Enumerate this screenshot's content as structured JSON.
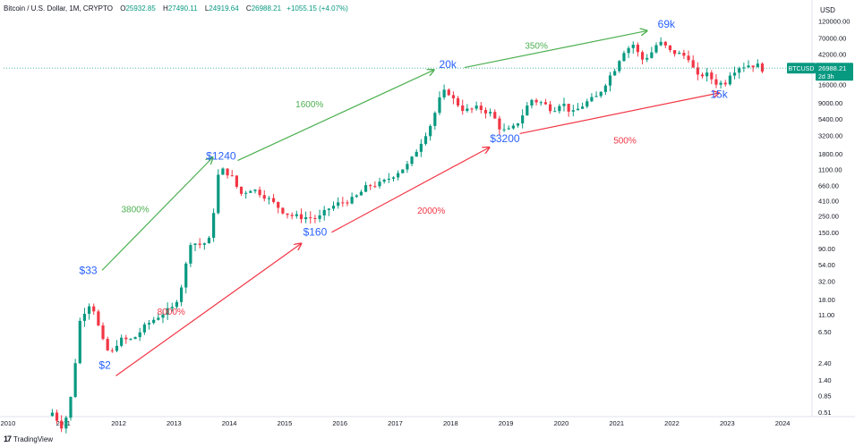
{
  "header": {
    "title": "Bitcoin / U.S. Dollar, 1M, CRYPTO",
    "open_label": "O",
    "open": "25932.85",
    "high_label": "H",
    "high": "27490.11",
    "low_label": "L",
    "low": "24919.64",
    "close_label": "C",
    "close": "26988.21",
    "change": "+1055.15 (+4.07%)"
  },
  "currency": "USD",
  "brand": {
    "logo": "17",
    "name": "TradingView"
  },
  "price_tag": {
    "symbol": "BTCUSD",
    "price": "26988.21",
    "countdown": "2d 3h",
    "value": 26988.21
  },
  "colors": {
    "up": "#089981",
    "down": "#f23645",
    "green_arrow": "#4caf50",
    "red_arrow": "#f23645",
    "blue_label": "#2962ff"
  },
  "chart_data": {
    "type": "candlestick",
    "y_scale": "log",
    "ylim": [
      0.44,
      140000
    ],
    "y_ticks": [
      {
        "v": 120000,
        "label": "120000.00"
      },
      {
        "v": 70000,
        "label": "70000.00"
      },
      {
        "v": 42000,
        "label": "42000.00"
      },
      {
        "v": 16000,
        "label": "16000.00"
      },
      {
        "v": 9000,
        "label": "9000.00"
      },
      {
        "v": 5400,
        "label": "5400.00"
      },
      {
        "v": 3200,
        "label": "3200.00"
      },
      {
        "v": 1800,
        "label": "1800.00"
      },
      {
        "v": 1100,
        "label": "1100.00"
      },
      {
        "v": 660,
        "label": "660.00"
      },
      {
        "v": 410,
        "label": "410.00"
      },
      {
        "v": 250,
        "label": "250.00"
      },
      {
        "v": 150,
        "label": "150.00"
      },
      {
        "v": 90,
        "label": "90.00"
      },
      {
        "v": 54,
        "label": "54.00"
      },
      {
        "v": 32,
        "label": "32.00"
      },
      {
        "v": 18,
        "label": "18.00"
      },
      {
        "v": 11,
        "label": "11.00"
      },
      {
        "v": 6.5,
        "label": "6.50"
      },
      {
        "v": 2.4,
        "label": "2.40"
      },
      {
        "v": 1.4,
        "label": "1.40"
      },
      {
        "v": 0.85,
        "label": "0.85"
      },
      {
        "v": 0.51,
        "label": "0.51"
      }
    ],
    "xlim": [
      2009.92,
      2024.5
    ],
    "x_ticks": [
      {
        "v": 2010,
        "label": "2010"
      },
      {
        "v": 2011,
        "label": "2011"
      },
      {
        "v": 2012,
        "label": "2012"
      },
      {
        "v": 2013,
        "label": "2013"
      },
      {
        "v": 2014,
        "label": "2014"
      },
      {
        "v": 2015,
        "label": "2015"
      },
      {
        "v": 2016,
        "label": "2016"
      },
      {
        "v": 2017,
        "label": "2017"
      },
      {
        "v": 2018,
        "label": "2018"
      },
      {
        "v": 2019,
        "label": "2019"
      },
      {
        "v": 2020,
        "label": "2020"
      },
      {
        "v": 2021,
        "label": "2021"
      },
      {
        "v": 2022,
        "label": "2022"
      },
      {
        "v": 2023,
        "label": "2023"
      },
      {
        "v": 2024,
        "label": "2024"
      }
    ],
    "annual_closes": [
      [
        2010.8,
        0.5
      ],
      [
        2011.0,
        0.3
      ],
      [
        2011.15,
        0.9
      ],
      [
        2011.3,
        9
      ],
      [
        2011.45,
        16
      ],
      [
        2011.55,
        13
      ],
      [
        2011.7,
        5
      ],
      [
        2011.85,
        3
      ],
      [
        2012.0,
        5
      ],
      [
        2012.25,
        5
      ],
      [
        2012.5,
        8
      ],
      [
        2012.75,
        11
      ],
      [
        2013.0,
        14
      ],
      [
        2013.15,
        30
      ],
      [
        2013.3,
        110
      ],
      [
        2013.5,
        100
      ],
      [
        2013.65,
        120
      ],
      [
        2013.8,
        900
      ],
      [
        2013.9,
        1100
      ],
      [
        2014.05,
        850
      ],
      [
        2014.2,
        500
      ],
      [
        2014.4,
        600
      ],
      [
        2014.6,
        500
      ],
      [
        2014.85,
        350
      ],
      [
        2015.0,
        280
      ],
      [
        2015.15,
        250
      ],
      [
        2015.4,
        240
      ],
      [
        2015.6,
        230
      ],
      [
        2015.8,
        320
      ],
      [
        2016.0,
        380
      ],
      [
        2016.25,
        430
      ],
      [
        2016.5,
        650
      ],
      [
        2016.75,
        700
      ],
      [
        2017.0,
        960
      ],
      [
        2017.25,
        1300
      ],
      [
        2017.45,
        2500
      ],
      [
        2017.65,
        4700
      ],
      [
        2017.8,
        10000
      ],
      [
        2017.92,
        14000
      ],
      [
        2018.05,
        10000
      ],
      [
        2018.25,
        7000
      ],
      [
        2018.5,
        7700
      ],
      [
        2018.75,
        6300
      ],
      [
        2018.92,
        3700
      ],
      [
        2019.1,
        3800
      ],
      [
        2019.25,
        5300
      ],
      [
        2019.45,
        10000
      ],
      [
        2019.65,
        9000
      ],
      [
        2019.85,
        7200
      ],
      [
        2020.0,
        9300
      ],
      [
        2020.2,
        6400
      ],
      [
        2020.45,
        9100
      ],
      [
        2020.65,
        11000
      ],
      [
        2020.85,
        19500
      ],
      [
        2021.0,
        29000
      ],
      [
        2021.1,
        45000
      ],
      [
        2021.3,
        57000
      ],
      [
        2021.45,
        35000
      ],
      [
        2021.6,
        41000
      ],
      [
        2021.75,
        61000
      ],
      [
        2021.85,
        57000
      ],
      [
        2021.95,
        46000
      ],
      [
        2022.1,
        43000
      ],
      [
        2022.3,
        38000
      ],
      [
        2022.45,
        20000
      ],
      [
        2022.6,
        23000
      ],
      [
        2022.8,
        17000
      ],
      [
        2022.95,
        16500
      ],
      [
        2023.05,
        23000
      ],
      [
        2023.2,
        28000
      ],
      [
        2023.4,
        30000
      ],
      [
        2023.55,
        29200
      ],
      [
        2023.65,
        26000
      ],
      [
        2023.7,
        26988
      ]
    ],
    "annotations": [
      {
        "text": "$2",
        "x": 2011.75,
        "y": 2.0,
        "color": "blue"
      },
      {
        "text": "$33",
        "x": 2011.45,
        "y": 40,
        "color": "blue"
      },
      {
        "text": "$1240",
        "x": 2013.85,
        "y": 1500,
        "color": "blue"
      },
      {
        "text": "$160",
        "x": 2015.55,
        "y": 135,
        "color": "blue"
      },
      {
        "text": "20k",
        "x": 2017.95,
        "y": 27000,
        "color": "blue"
      },
      {
        "text": "$3200",
        "x": 2018.98,
        "y": 2600,
        "color": "blue"
      },
      {
        "text": "69k",
        "x": 2021.9,
        "y": 97000,
        "color": "blue"
      },
      {
        "text": "15k",
        "x": 2022.85,
        "y": 10500,
        "color": "blue"
      },
      {
        "text": "3800%",
        "x": 2012.3,
        "y": 280,
        "color": "green"
      },
      {
        "text": "1600%",
        "x": 2015.45,
        "y": 7800,
        "color": "green"
      },
      {
        "text": "350%",
        "x": 2019.55,
        "y": 50000,
        "color": "green"
      },
      {
        "text": "8000%",
        "x": 2012.95,
        "y": 11,
        "color": "red"
      },
      {
        "text": "2000%",
        "x": 2017.65,
        "y": 270,
        "color": "red"
      },
      {
        "text": "500%",
        "x": 2021.15,
        "y": 2500,
        "color": "red"
      }
    ],
    "arrows": [
      {
        "from": [
          2011.7,
          45
        ],
        "to": [
          2013.7,
          1600
        ],
        "color": "green"
      },
      {
        "from": [
          2014.15,
          1450
        ],
        "to": [
          2017.7,
          25500
        ],
        "color": "green"
      },
      {
        "from": [
          2018.25,
          27500
        ],
        "to": [
          2021.55,
          88000
        ],
        "color": "green"
      },
      {
        "from": [
          2011.95,
          1.6
        ],
        "to": [
          2015.3,
          105
        ],
        "color": "red"
      },
      {
        "from": [
          2015.85,
          150
        ],
        "to": [
          2018.7,
          2200
        ],
        "color": "red"
      },
      {
        "from": [
          2019.25,
          3400
        ],
        "to": [
          2022.85,
          12300
        ],
        "color": "red"
      }
    ]
  }
}
